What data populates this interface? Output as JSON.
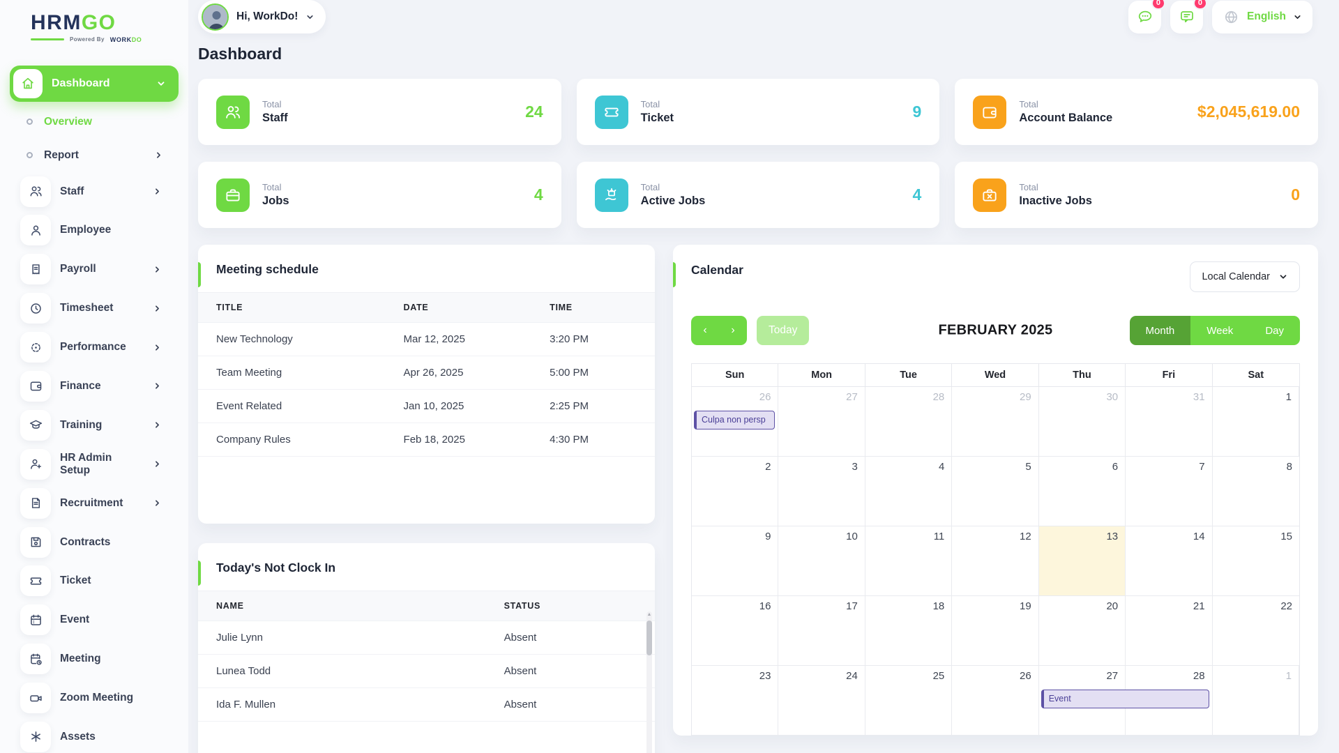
{
  "colors": {
    "accent_green": "#6FD943",
    "active_view_green": "#56A335",
    "cyan": "#3EC6D4",
    "orange": "#F9A21B",
    "badge_pink": "#FF3A6E",
    "event_purple": "#5D51A5",
    "event_purple_bg": "#E3DFF3",
    "today_cell_bg": "#FDF6DC"
  },
  "header": {
    "logo": {
      "text_primary": "HRM",
      "text_accent": "GO",
      "tagline_prefix": "Powered By",
      "tagline_brand_primary": "WORK",
      "tagline_brand_accent": "DO"
    },
    "greeting": "Hi, WorkDo!",
    "messages_badge": "0",
    "notifications_badge": "0",
    "language": "English"
  },
  "sidebar": {
    "items": [
      {
        "label": "Dashboard",
        "icon": "home-icon"
      },
      {
        "label": "Overview",
        "icon": "dot-icon"
      },
      {
        "label": "Report",
        "icon": "dot-icon"
      },
      {
        "label": "Staff",
        "icon": "users-icon"
      },
      {
        "label": "Employee",
        "icon": "user-icon"
      },
      {
        "label": "Payroll",
        "icon": "receipt-icon"
      },
      {
        "label": "Timesheet",
        "icon": "clock-icon"
      },
      {
        "label": "Performance",
        "icon": "target-icon"
      },
      {
        "label": "Finance",
        "icon": "wallet-icon"
      },
      {
        "label": "Training",
        "icon": "graduation-cap-icon"
      },
      {
        "label": "HR Admin Setup",
        "icon": "user-plus-icon"
      },
      {
        "label": "Recruitment",
        "icon": "document-icon"
      },
      {
        "label": "Contracts",
        "icon": "save-icon"
      },
      {
        "label": "Ticket",
        "icon": "ticket-icon"
      },
      {
        "label": "Event",
        "icon": "calendar-icon"
      },
      {
        "label": "Meeting",
        "icon": "calendar-clock-icon"
      },
      {
        "label": "Zoom Meeting",
        "icon": "video-icon"
      },
      {
        "label": "Assets",
        "icon": "asterisk-icon"
      }
    ]
  },
  "page": {
    "title": "Dashboard"
  },
  "stats": [
    {
      "label_top": "Total",
      "label": "Staff",
      "value": "24",
      "color": "#6FD943",
      "icon": "users-icon"
    },
    {
      "label_top": "Total",
      "label": "Ticket",
      "value": "9",
      "color": "#3EC6D4",
      "icon": "ticket-icon"
    },
    {
      "label_top": "Total",
      "label": "Account Balance",
      "value": "$2,045,619.00",
      "color": "#F9A21B",
      "icon": "wallet-icon"
    },
    {
      "label_top": "Total",
      "label": "Jobs",
      "value": "4",
      "color": "#6FD943",
      "icon": "briefcase-icon"
    },
    {
      "label_top": "Total",
      "label": "Active Jobs",
      "value": "4",
      "color": "#3EC6D4",
      "icon": "briefcase-hand-icon"
    },
    {
      "label_top": "Total",
      "label": "Inactive Jobs",
      "value": "0",
      "color": "#F9A21B",
      "icon": "briefcase-x-icon"
    }
  ],
  "meeting_schedule": {
    "title": "Meeting schedule",
    "columns": {
      "c0": "TITLE",
      "c1": "DATE",
      "c2": "TIME"
    },
    "rows": [
      {
        "title": "New Technology",
        "date": "Mar 12, 2025",
        "time": "3:20 PM"
      },
      {
        "title": "Team Meeting",
        "date": "Apr 26, 2025",
        "time": "5:00 PM"
      },
      {
        "title": "Event Related",
        "date": "Jan 10, 2025",
        "time": "2:25 PM"
      },
      {
        "title": "Company Rules",
        "date": "Feb 18, 2025",
        "time": "4:30 PM"
      }
    ]
  },
  "not_clock_in": {
    "title": "Today's Not Clock In",
    "columns": {
      "c0": "NAME",
      "c1": "STATUS"
    },
    "rows": [
      {
        "name": "Julie Lynn",
        "status": "Absent"
      },
      {
        "name": "Lunea Todd",
        "status": "Absent"
      },
      {
        "name": "Ida F. Mullen",
        "status": "Absent"
      }
    ]
  },
  "calendar": {
    "title": "Calendar",
    "source_select": "Local Calendar",
    "prev_label": "‹",
    "next_label": "›",
    "today_label": "Today",
    "month_title": "FEBRUARY 2025",
    "views": {
      "v0": "Month",
      "v1": "Week",
      "v2": "Day"
    },
    "active_view": "Month",
    "day_headers": [
      "Sun",
      "Mon",
      "Tue",
      "Wed",
      "Thu",
      "Fri",
      "Sat"
    ],
    "weeks": [
      [
        "26",
        "27",
        "28",
        "29",
        "30",
        "31",
        "1"
      ],
      [
        "2",
        "3",
        "4",
        "5",
        "6",
        "7",
        "8"
      ],
      [
        "9",
        "10",
        "11",
        "12",
        "13",
        "14",
        "15"
      ],
      [
        "16",
        "17",
        "18",
        "19",
        "20",
        "21",
        "22"
      ],
      [
        "23",
        "24",
        "25",
        "26",
        "27",
        "28",
        "1"
      ]
    ],
    "muted": {
      "0": [
        0,
        1,
        2,
        3,
        4,
        5
      ],
      "4": [
        6
      ]
    },
    "today": {
      "week": 2,
      "col": 4
    },
    "events": [
      {
        "label": "Culpa non persp",
        "week": 0,
        "col": 0,
        "span": 1
      },
      {
        "label": "Event",
        "week": 4,
        "col": 4,
        "span": 2
      }
    ]
  }
}
